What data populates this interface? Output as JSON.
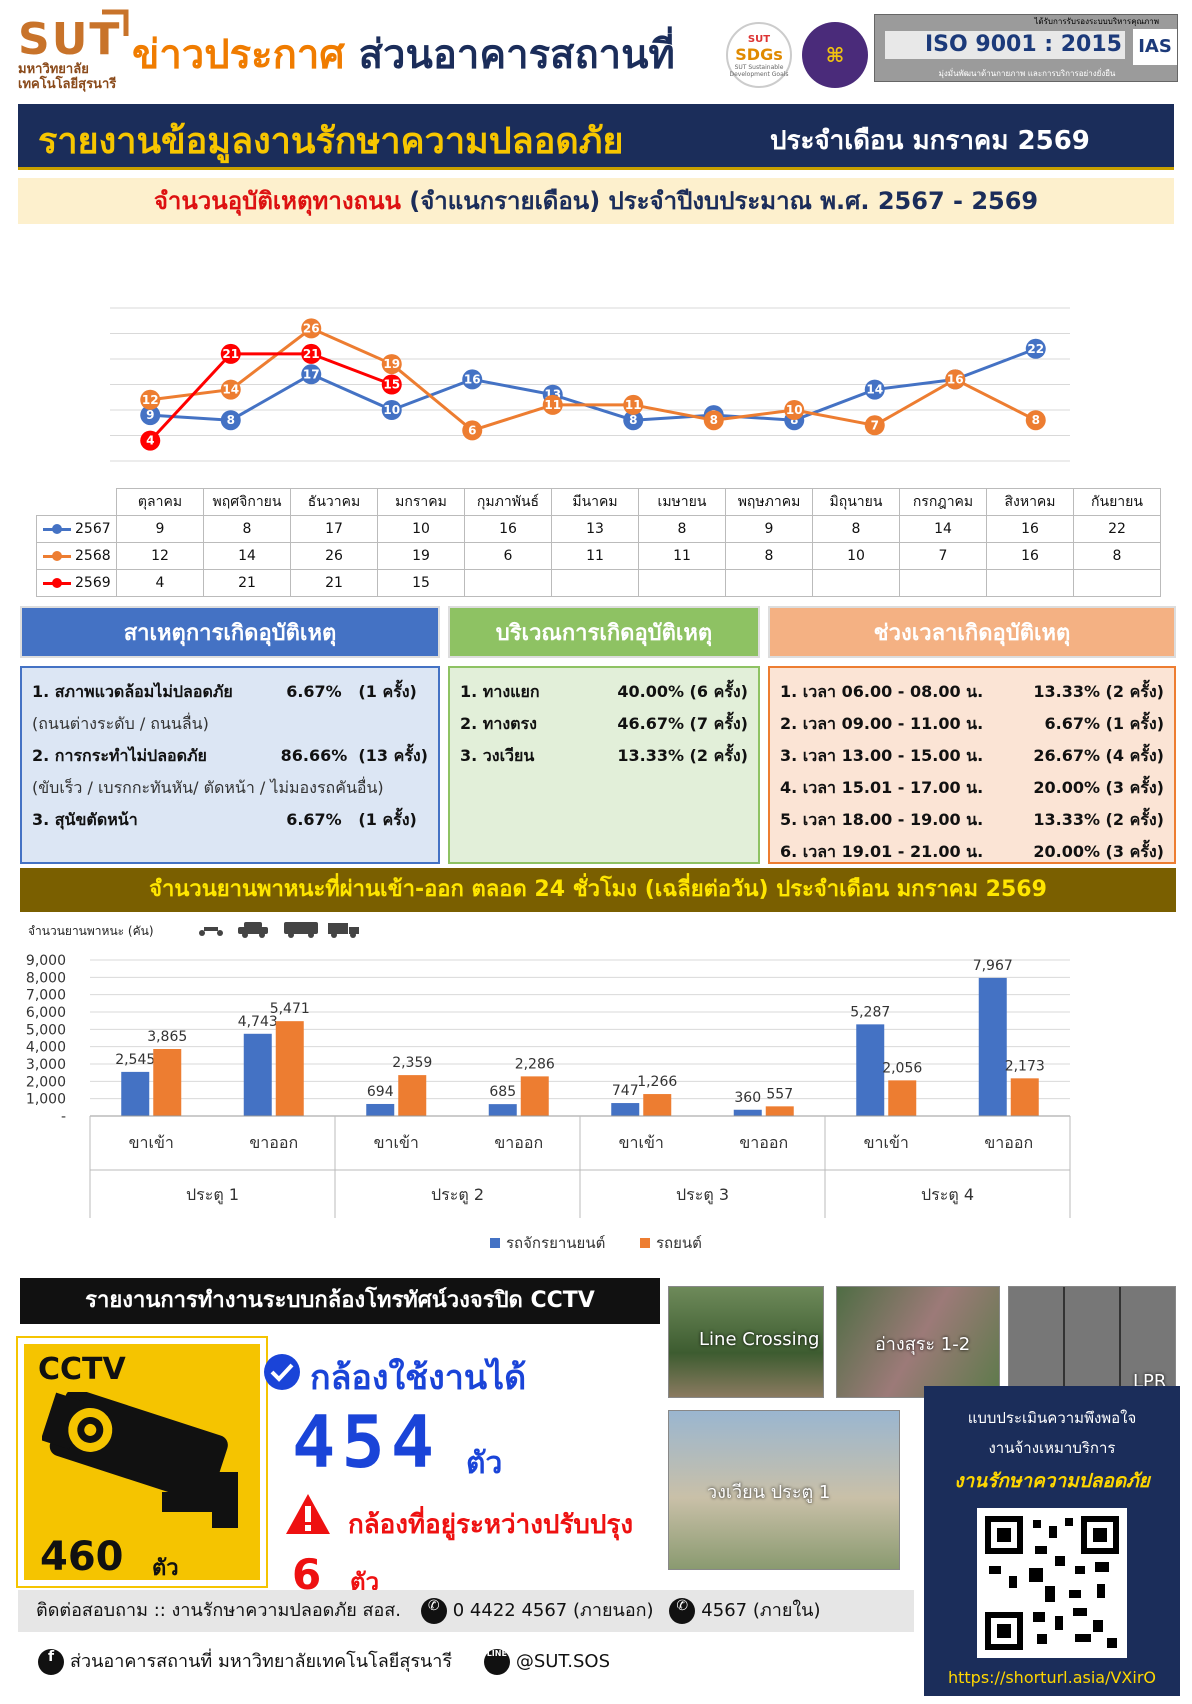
{
  "header": {
    "org_short": "SUT",
    "org_full": "มหาวิทยาลัยเทคโนโลยีสุรนารี",
    "title_part1": "ข่าวประกาศ",
    "title_part2": "ส่วนอาคารสถานที่",
    "sdgs_top": "SUT",
    "sdgs_main": "SDGs",
    "sdgs_sub": "SUT Sustainable Development Goals",
    "iso_certified_text": "ได้รับการรับรองระบบบริหารคุณภาพ",
    "iso_label": "ISO 9001 : 2015",
    "ias_label": "IAS",
    "iso_tagline": "มุ่งมั่นพัฒนาด้านกายภาพ และการบริการอย่างยั่งยืน"
  },
  "banner": {
    "title": "รายงานข้อมูลงานรักษาความปลอดภัย",
    "period": "ประจำเดือน มกราคม 2569"
  },
  "subbanner": {
    "red": "จำนวนอุบัติเหตุทางถนน",
    "dark": "(จำแนกรายเดือน) ประจำปีงบประมาณ พ.ศ. 2567 - 2569"
  },
  "colors": {
    "s2567": "#4472c4",
    "s2568": "#ed7d31",
    "s2569": "#ff0000",
    "navy": "#1b2d5a"
  },
  "chart_data": [
    {
      "type": "line",
      "categories": [
        "ตุลาคม",
        "พฤศจิกายน",
        "ธันวาคม",
        "มกราคม",
        "กุมภาพันธ์",
        "มีนาคม",
        "เมษายน",
        "พฤษภาคม",
        "มิถุนายน",
        "กรกฎาคม",
        "สิงหาคม",
        "กันยายน"
      ],
      "series": [
        {
          "name": "2567",
          "color": "#4472c4",
          "values": [
            9,
            8,
            17,
            10,
            16,
            13,
            8,
            9,
            8,
            14,
            16,
            22
          ]
        },
        {
          "name": "2568",
          "color": "#ed7d31",
          "values": [
            12,
            14,
            26,
            19,
            6,
            11,
            11,
            8,
            10,
            7,
            16,
            8
          ]
        },
        {
          "name": "2569",
          "color": "#ff0000",
          "values": [
            4,
            21,
            21,
            15,
            null,
            null,
            null,
            null,
            null,
            null,
            null,
            null
          ]
        }
      ],
      "grid": true
    },
    {
      "type": "bar",
      "ylabel": "จำนวนยานพาหนะ (คัน)",
      "categories": [
        "ขาเข้า",
        "ขาออก",
        "ขาเข้า",
        "ขาออก",
        "ขาเข้า",
        "ขาออก",
        "ขาเข้า",
        "ขาออก"
      ],
      "groups": [
        "ประตู 1",
        "ประตู 2",
        "ประตู 3",
        "ประตู 4"
      ],
      "series": [
        {
          "name": "รถจักรยานยนต์",
          "color": "#4472c4",
          "values": [
            2545,
            4743,
            694,
            685,
            747,
            360,
            5287,
            7967
          ]
        },
        {
          "name": "รถยนต์",
          "color": "#ed7d31",
          "values": [
            3865,
            5471,
            2359,
            2286,
            1266,
            557,
            2056,
            2173
          ]
        }
      ],
      "ylim": [
        0,
        9000
      ],
      "yticks": [
        "-",
        "1,000",
        "2,000",
        "3,000",
        "4,000",
        "5,000",
        "6,000",
        "7,000",
        "8,000",
        "9,000"
      ],
      "legend": "bottom"
    }
  ],
  "causes": {
    "title": "สาเหตุการเกิดอุบัติเหตุ",
    "items": [
      {
        "label": "1. สภาพแวดล้อมไม่ปลอดภัย",
        "pct": "6.67%",
        "count": "(1 ครั้ง)",
        "note": "(ถนนต่างระดับ / ถนนลื่น)"
      },
      {
        "label": "2. การกระทำไม่ปลอดภัย",
        "pct": "86.66%",
        "count": "(13 ครั้ง)",
        "note": "(ขับเร็ว / เบรกกะทันหัน/ ตัดหน้า / ไม่มองรถคันอื่น)"
      },
      {
        "label": "3. สุนัขตัดหน้า",
        "pct": "6.67%",
        "count": "(1 ครั้ง)",
        "note": ""
      }
    ]
  },
  "areas": {
    "title": "บริเวณการเกิดอุบัติเหตุ",
    "items": [
      {
        "label": "1. ทางแยก",
        "value": "40.00% (6 ครั้ง)"
      },
      {
        "label": "2. ทางตรง",
        "value": "46.67% (7 ครั้ง)"
      },
      {
        "label": "3. วงเวียน",
        "value": "13.33% (2 ครั้ง)"
      }
    ]
  },
  "times": {
    "title": "ช่วงเวลาเกิดอุบัติเหตุ",
    "items": [
      {
        "label": "1. เวลา 06.00 - 08.00 น.",
        "value": "13.33% (2 ครั้ง)"
      },
      {
        "label": "2. เวลา 09.00 - 11.00 น.",
        "value": "6.67% (1 ครั้ง)"
      },
      {
        "label": "3. เวลา 13.00 - 15.00 น.",
        "value": "26.67% (4 ครั้ง)"
      },
      {
        "label": "4. เวลา 15.01 - 17.00 น.",
        "value": "20.00% (3 ครั้ง)"
      },
      {
        "label": "5. เวลา 18.00 - 19.00 น.",
        "value": "13.33%  (2 ครั้ง)"
      },
      {
        "label": "6. เวลา 19.01 - 21.00 น.",
        "value": "20.00% (3 ครั้ง)"
      }
    ]
  },
  "vehicles": {
    "banner": "จำนวนยานพาหนะที่ผ่านเข้า-ออก ตลอด 24 ชั่วโมง (เฉลี่ยต่อวัน) ประจำเดือน มกราคม 2569",
    "unit_label": "จำนวนยานพาหนะ (คัน)"
  },
  "cctv": {
    "title": "รายงานการทำงานระบบกล้องโทรทัศน์วงจรปิด CCTV",
    "sign_label": "CCTV",
    "total": "460",
    "unit": "ตัว",
    "ok_label": "กล้องใช้งานได้",
    "ok_count": "454",
    "warn_label": "กล้องที่อยู่ระหว่างปรับปรุง",
    "warn_count": "6",
    "photos": [
      "Line Crossing",
      "อ่างสุระ 1-2",
      "LPR",
      "วงเวียน ประตู 1"
    ]
  },
  "survey": {
    "line1": "แบบประเมินความพึงพอใจ",
    "line2": "งานจ้างเหมาบริการ",
    "line3": "งานรักษาความปลอดภัย",
    "url": "https://shorturl.asia/VXirO"
  },
  "footer": {
    "contact": "ติดต่อสอบถาม :: งานรักษาความปลอดภัย สอส.",
    "phone_ext": "0 4422 4567 (ภายนอก)",
    "phone_int": "4567 (ภายใน)",
    "facebook": "ส่วนอาคารสถานที่  มหาวิทยาลัยเทคโนโลยีสุรนารี",
    "line": "@SUT.SOS"
  }
}
